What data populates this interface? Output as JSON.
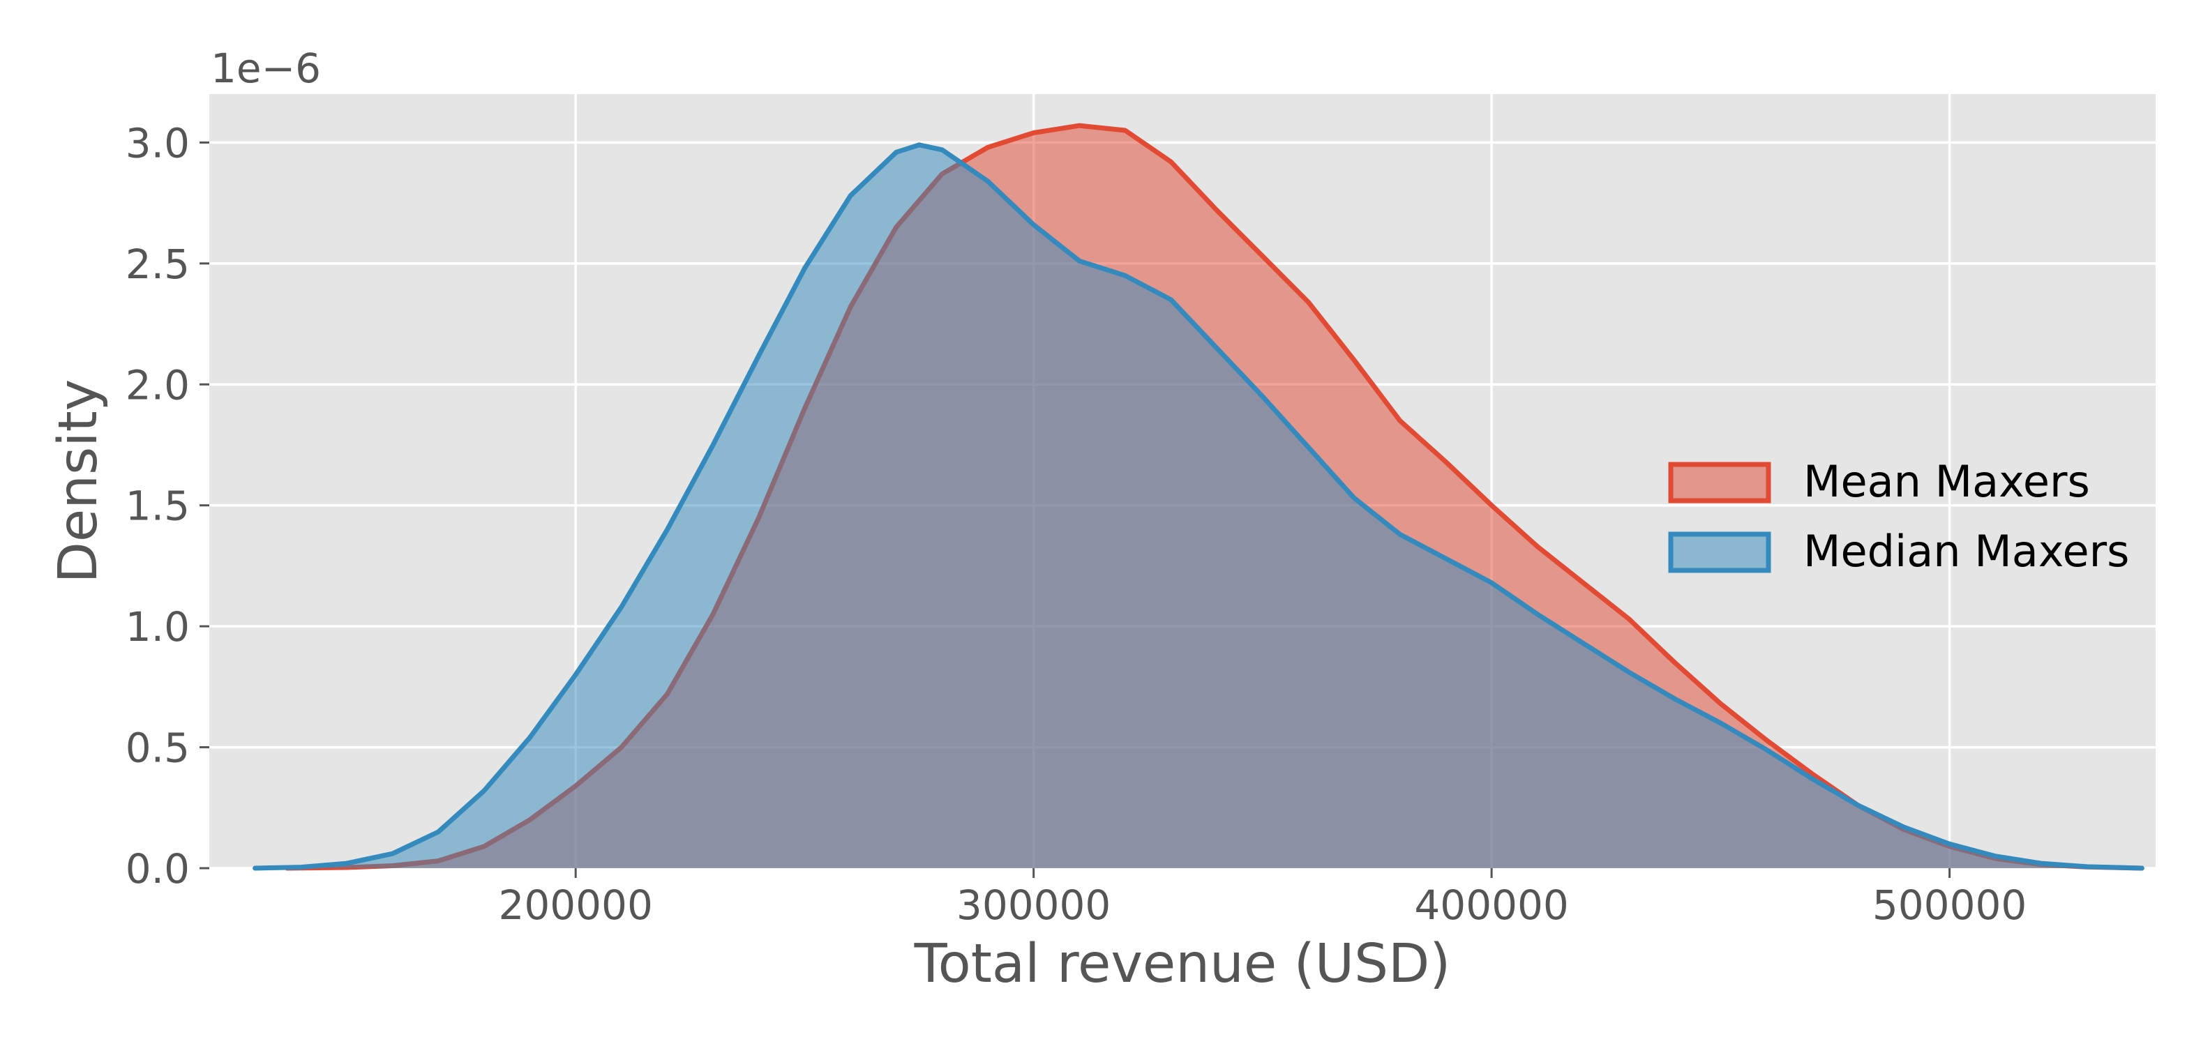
{
  "chart_data": {
    "type": "area",
    "subtype": "kde",
    "style": "ggplot",
    "xlabel": "Total revenue (USD)",
    "ylabel": "Density",
    "y_offset_label": "1e−6",
    "xlim": [
      120000,
      545000
    ],
    "ylim": [
      0,
      3.2e-06
    ],
    "x_ticks": [
      200000,
      300000,
      400000,
      500000
    ],
    "x_tick_labels": [
      "200000",
      "300000",
      "400000",
      "500000"
    ],
    "y_ticks": [
      0,
      5e-07,
      1e-06,
      1.5e-06,
      2e-06,
      2.5e-06,
      3e-06
    ],
    "y_tick_labels": [
      "0.0",
      "0.5",
      "1.0",
      "1.5",
      "2.0",
      "2.5",
      "3.0"
    ],
    "grid": true,
    "legend_position": "center-right",
    "series": [
      {
        "name": "Mean Maxers",
        "color": "#E24A33",
        "x": [
          137000,
          150000,
          160000,
          170000,
          180000,
          190000,
          200000,
          210000,
          220000,
          230000,
          240000,
          250000,
          260000,
          270000,
          280000,
          290000,
          300000,
          310000,
          320000,
          330000,
          340000,
          350000,
          360000,
          370000,
          380000,
          390000,
          400000,
          410000,
          420000,
          430000,
          440000,
          450000,
          460000,
          470000,
          480000,
          490000,
          500000,
          510000,
          520000,
          530000,
          542000
        ],
        "y": [
          0.0,
          3e-09,
          1e-08,
          3e-08,
          9e-08,
          2e-07,
          3.4e-07,
          5e-07,
          7.2e-07,
          1.05e-06,
          1.45e-06,
          1.9e-06,
          2.32e-06,
          2.65e-06,
          2.87e-06,
          2.98e-06,
          3.04e-06,
          3.07e-06,
          3.05e-06,
          2.92e-06,
          2.72e-06,
          2.53e-06,
          2.34e-06,
          2.1e-06,
          1.85e-06,
          1.68e-06,
          1.5e-06,
          1.33e-06,
          1.18e-06,
          1.03e-06,
          8.5e-07,
          6.8e-07,
          5.3e-07,
          3.9e-07,
          2.6e-07,
          1.6e-07,
          9e-08,
          4e-08,
          1.5e-08,
          5e-09,
          0.0
        ]
      },
      {
        "name": "Median Maxers",
        "color": "#348ABD",
        "x": [
          130000,
          140000,
          150000,
          160000,
          170000,
          180000,
          190000,
          200000,
          210000,
          220000,
          230000,
          240000,
          250000,
          260000,
          270000,
          275000,
          280000,
          290000,
          300000,
          310000,
          320000,
          330000,
          340000,
          350000,
          360000,
          370000,
          380000,
          390000,
          400000,
          410000,
          420000,
          430000,
          440000,
          450000,
          460000,
          470000,
          480000,
          490000,
          500000,
          510000,
          520000,
          530000,
          542000
        ],
        "y": [
          0.0,
          4e-09,
          2e-08,
          6e-08,
          1.5e-07,
          3.2e-07,
          5.4e-07,
          8e-07,
          1.08e-06,
          1.4e-06,
          1.75e-06,
          2.12e-06,
          2.48e-06,
          2.78e-06,
          2.96e-06,
          2.99e-06,
          2.97e-06,
          2.84e-06,
          2.66e-06,
          2.51e-06,
          2.45e-06,
          2.35e-06,
          2.15e-06,
          1.95e-06,
          1.74e-06,
          1.53e-06,
          1.38e-06,
          1.28e-06,
          1.18e-06,
          1.05e-06,
          9.3e-07,
          8.1e-07,
          7e-07,
          6e-07,
          4.9e-07,
          3.7e-07,
          2.6e-07,
          1.7e-07,
          1e-07,
          5e-08,
          2e-08,
          6e-09,
          0.0
        ]
      }
    ]
  }
}
